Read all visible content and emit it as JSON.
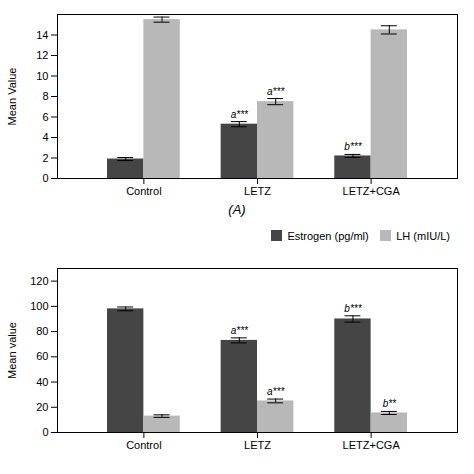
{
  "chart_data": [
    {
      "type": "bar",
      "ylabel": "Mean Value",
      "caption": "(A)",
      "categories": [
        "Control",
        "LETZ",
        "LETZ+CGA"
      ],
      "series": [
        {
          "color": "#454545",
          "values": [
            1.9,
            5.3,
            2.2
          ],
          "errors": [
            0.15,
            0.25,
            0.15
          ],
          "annotations": [
            null,
            "a***",
            "b***"
          ]
        },
        {
          "color": "#b8b8b8",
          "values": [
            15.5,
            7.5,
            14.5
          ],
          "errors": [
            0.25,
            0.3,
            0.4
          ],
          "annotations": [
            null,
            "a***",
            null
          ]
        }
      ],
      "ylim": [
        0,
        16
      ],
      "yticks": [
        0,
        2,
        4,
        6,
        8,
        10,
        12,
        14
      ]
    },
    {
      "type": "bar",
      "ylabel": "Mean value",
      "categories": [
        "Control",
        "LETZ",
        "LETZ+CGA"
      ],
      "series": [
        {
          "name": "Estrogen (pg/ml)",
          "color": "#454545",
          "values": [
            98,
            73,
            90
          ],
          "errors": [
            1.5,
            2.0,
            2.5
          ],
          "annotations": [
            null,
            "a***",
            "b***"
          ]
        },
        {
          "name": "LH (mIU/L)",
          "color": "#b8b8b8",
          "values": [
            13,
            25,
            15.5
          ],
          "errors": [
            1.0,
            1.5,
            1.2
          ],
          "annotations": [
            null,
            "a***",
            "b**"
          ]
        }
      ],
      "ylim": [
        0,
        130
      ],
      "yticks": [
        0,
        20,
        40,
        60,
        80,
        100,
        120
      ],
      "legend": "upper right"
    }
  ]
}
